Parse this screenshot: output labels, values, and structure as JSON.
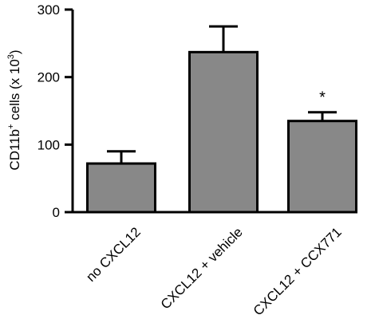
{
  "chart_data": {
    "type": "bar",
    "title": "",
    "ylabel_parts": [
      "CD11b",
      "+",
      " cells (x 10",
      "3",
      ")"
    ],
    "xlabel": "",
    "categories": [
      "no CXCL12",
      "CXCL12 + vehicle",
      "CXCL12 + CCX771"
    ],
    "values": [
      72,
      237,
      135
    ],
    "errors": [
      18,
      38,
      13
    ],
    "significance": [
      "",
      "",
      "*"
    ],
    "ylim": [
      0,
      300
    ],
    "yticks": [
      0,
      100,
      200,
      300
    ],
    "bar_color": "#888888",
    "grid": false,
    "legend": "none"
  }
}
